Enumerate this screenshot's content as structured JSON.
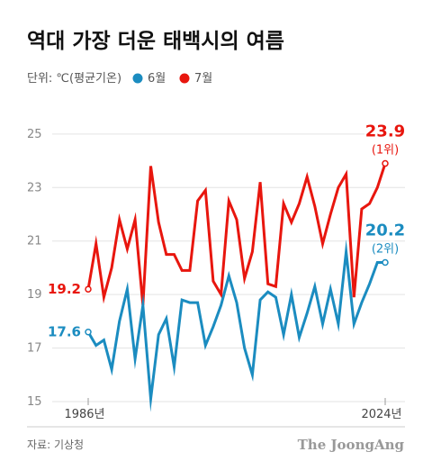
{
  "title": "역대 가장 더운 태백시의 여름",
  "legend": {
    "unit_label": "단위: ℃(평균기온)",
    "items": [
      {
        "label": "6월",
        "color": "#1b8cc0"
      },
      {
        "label": "7월",
        "color": "#e8160e"
      }
    ]
  },
  "source": "자료: 기상청",
  "brand": "The JoongAng",
  "chart_data": {
    "type": "line",
    "x": [
      1986,
      1987,
      1988,
      1989,
      1990,
      1991,
      1992,
      1993,
      1994,
      1995,
      1996,
      1997,
      1998,
      1999,
      2000,
      2001,
      2002,
      2003,
      2004,
      2005,
      2006,
      2007,
      2008,
      2009,
      2010,
      2011,
      2012,
      2013,
      2014,
      2015,
      2016,
      2017,
      2018,
      2019,
      2020,
      2021,
      2022,
      2023,
      2024
    ],
    "x_tick_labels": [
      "1986년",
      "2024년"
    ],
    "y_ticks": [
      15,
      17,
      19,
      21,
      23,
      25
    ],
    "ylim": [
      15,
      25.5
    ],
    "grid": true,
    "series": [
      {
        "name": "7월",
        "color": "#e8160e",
        "values": [
          19.2,
          20.9,
          18.9,
          20.0,
          21.8,
          20.7,
          21.8,
          18.6,
          23.8,
          21.7,
          20.5,
          20.5,
          19.9,
          19.9,
          22.5,
          22.9,
          19.5,
          19.0,
          22.5,
          21.8,
          19.6,
          20.6,
          23.2,
          19.4,
          19.3,
          22.4,
          21.7,
          22.4,
          23.4,
          22.3,
          20.9,
          22.0,
          23.0,
          23.5,
          18.9,
          22.2,
          22.4,
          23.0,
          23.9
        ]
      },
      {
        "name": "6월",
        "color": "#1b8cc0",
        "values": [
          17.6,
          17.1,
          17.3,
          16.2,
          18.0,
          19.2,
          16.6,
          18.6,
          15.1,
          17.5,
          18.1,
          16.3,
          18.8,
          18.7,
          18.7,
          17.1,
          17.8,
          18.6,
          19.7,
          18.7,
          17.0,
          16.0,
          18.8,
          19.1,
          18.9,
          17.5,
          19.0,
          17.4,
          18.3,
          19.3,
          17.9,
          19.2,
          17.9,
          20.6,
          17.9,
          18.7,
          19.4,
          20.2,
          20.2
        ]
      }
    ],
    "annotations": [
      {
        "value": "19.2",
        "series": "7월",
        "point": "first"
      },
      {
        "value": "17.6",
        "series": "6월",
        "point": "first"
      },
      {
        "value": "23.9",
        "sub": "(1위)",
        "series": "7월",
        "point": "last"
      },
      {
        "value": "20.2",
        "sub": "(2위)",
        "series": "6월",
        "point": "last"
      }
    ]
  }
}
